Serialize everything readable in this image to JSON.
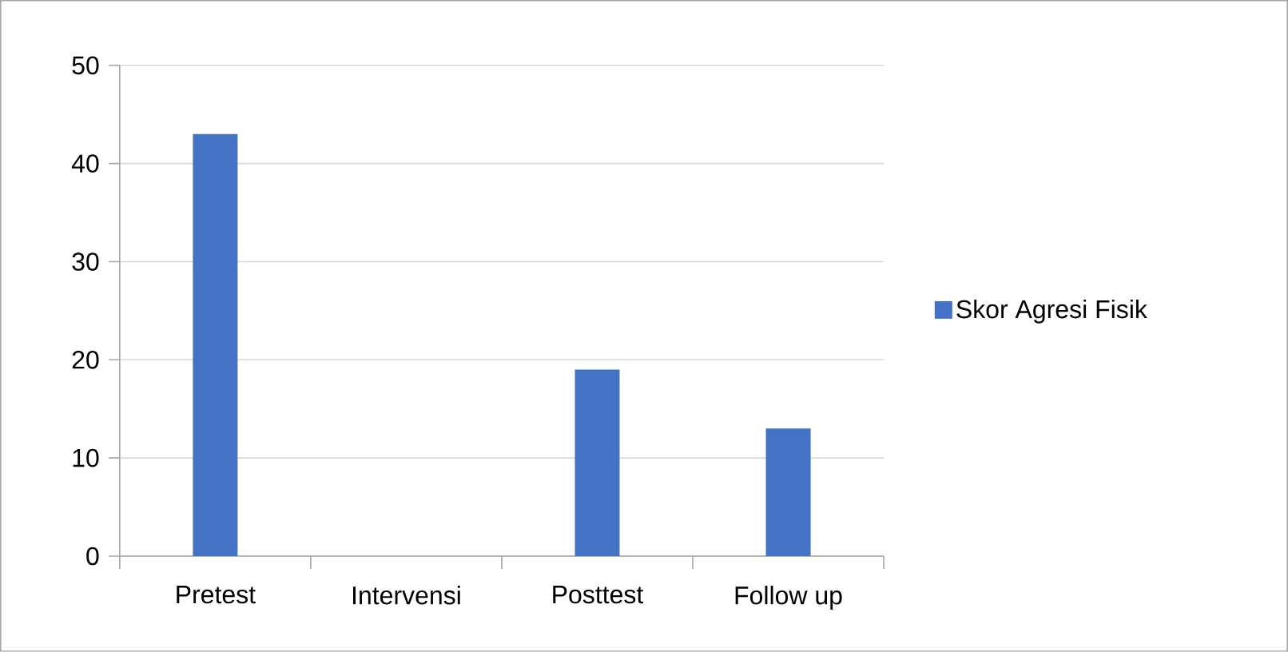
{
  "chart_data": {
    "type": "bar",
    "categories": [
      "Pretest",
      "Intervensi",
      "Posttest",
      "Follow up"
    ],
    "series": [
      {
        "name": "Skor Agresi Fisik",
        "color": "#4472c4",
        "values": [
          43,
          null,
          19,
          13
        ]
      }
    ],
    "ylim": [
      0,
      50
    ],
    "yticks": [
      0,
      10,
      20,
      30,
      40,
      50
    ],
    "grid": "y",
    "legend": "right"
  }
}
